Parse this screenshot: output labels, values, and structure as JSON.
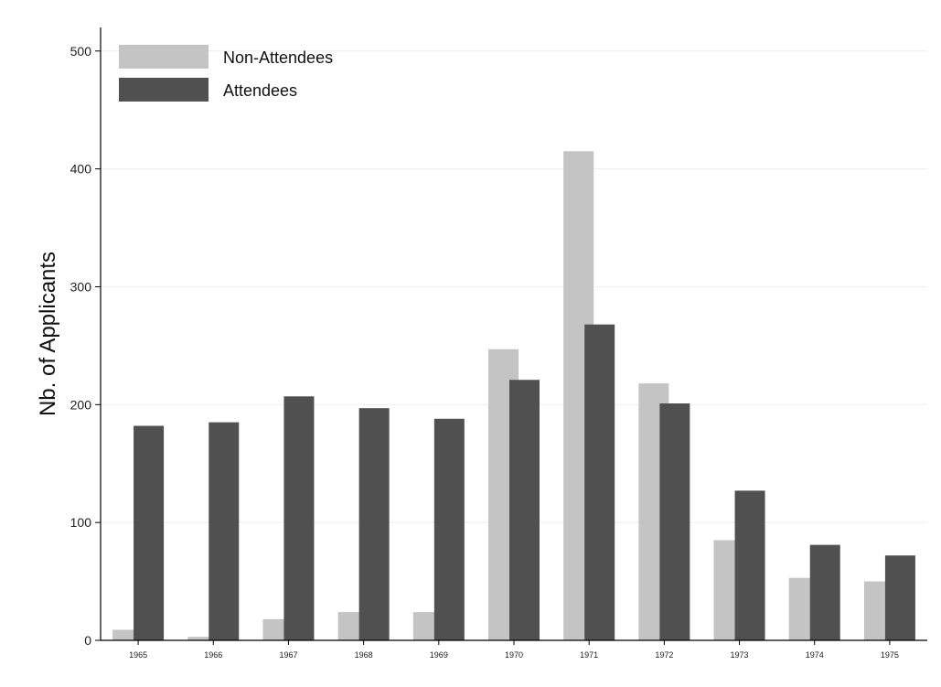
{
  "chart_data": {
    "type": "bar",
    "title": "",
    "xlabel": "",
    "ylabel": "Nb. of Applicants",
    "categories": [
      "1965",
      "1966",
      "1967",
      "1968",
      "1969",
      "1970",
      "1971",
      "1972",
      "1973",
      "1974",
      "1975"
    ],
    "series": [
      {
        "name": "Non-Attendees",
        "color": "#c4c4c4",
        "values": [
          9,
          3,
          18,
          24,
          24,
          247,
          415,
          218,
          85,
          53,
          50
        ]
      },
      {
        "name": "Attendees",
        "color": "#505050",
        "values": [
          182,
          185,
          207,
          197,
          188,
          221,
          268,
          201,
          127,
          81,
          72
        ]
      }
    ],
    "ylim": [
      0,
      520
    ],
    "yticks": [
      0,
      100,
      200,
      300,
      400,
      500
    ],
    "grid": true,
    "legend_position": "top-left"
  }
}
